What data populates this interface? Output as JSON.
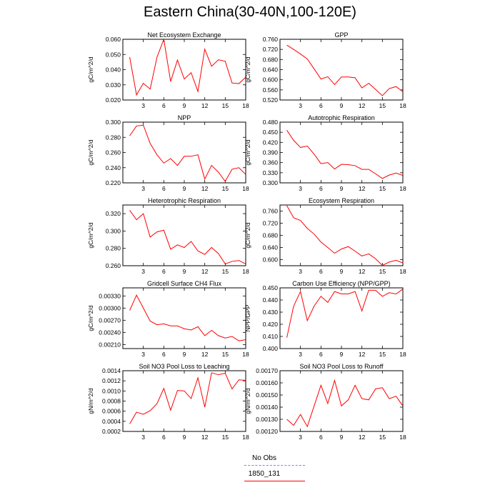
{
  "title": "Eastern China(30-40N,100-120E)",
  "legend": {
    "items": [
      {
        "label": "No Obs",
        "color": "#8080ff",
        "dashed": true
      },
      {
        "label": "1850_131",
        "color": "#ff0000",
        "dashed": false
      }
    ]
  },
  "chart_data": [
    {
      "type": "line",
      "title": "Net Ecosystem Exchange",
      "ylabel": "gC/m^2/d",
      "xlim": [
        0,
        18
      ],
      "xticks": [
        3,
        6,
        9,
        12,
        15,
        18
      ],
      "ylim": [
        0.02,
        0.06
      ],
      "yticks": [
        "0.020",
        "0.030",
        "0.040",
        "0.050",
        "0.060"
      ],
      "series": [
        {
          "color": "#ff0000",
          "x": [
            1,
            2,
            3,
            4,
            5,
            6,
            7,
            8,
            9,
            10,
            11,
            12,
            13,
            14,
            15,
            16,
            17,
            18
          ],
          "values": [
            0.0483,
            0.0234,
            0.031,
            0.0272,
            0.0482,
            0.06,
            0.0322,
            0.0463,
            0.0338,
            0.038,
            0.0256,
            0.0535,
            0.0422,
            0.0465,
            0.0455,
            0.0312,
            0.0308,
            0.035
          ]
        }
      ]
    },
    {
      "type": "line",
      "title": "GPP",
      "ylabel": "gC/m^2/d",
      "xlim": [
        0,
        18
      ],
      "xticks": [
        3,
        6,
        9,
        12,
        15,
        18
      ],
      "ylim": [
        0.52,
        0.76
      ],
      "yticks": [
        "0.520",
        "0.560",
        "0.600",
        "0.640",
        "0.680",
        "0.720",
        "0.760"
      ],
      "series": [
        {
          "color": "#ff0000",
          "x": [
            1,
            2,
            3,
            4,
            5,
            6,
            7,
            8,
            9,
            10,
            11,
            12,
            13,
            14,
            15,
            16,
            17,
            18
          ],
          "values": [
            0.737,
            0.72,
            0.702,
            0.682,
            0.643,
            0.603,
            0.612,
            0.581,
            0.611,
            0.611,
            0.608,
            0.568,
            0.586,
            0.562,
            0.537,
            0.565,
            0.573,
            0.553
          ]
        }
      ]
    },
    {
      "type": "line",
      "title": "NPP",
      "ylabel": "gC/m^2/d",
      "xlim": [
        0,
        18
      ],
      "xticks": [
        3,
        6,
        9,
        12,
        15,
        18
      ],
      "ylim": [
        0.22,
        0.3
      ],
      "yticks": [
        "0.220",
        "0.240",
        "0.260",
        "0.280",
        "0.300"
      ],
      "series": [
        {
          "color": "#ff0000",
          "x": [
            1,
            2,
            3,
            4,
            5,
            6,
            7,
            8,
            9,
            10,
            11,
            12,
            13,
            14,
            15,
            16,
            17,
            18
          ],
          "values": [
            0.282,
            0.295,
            0.296,
            0.272,
            0.257,
            0.246,
            0.252,
            0.243,
            0.255,
            0.255,
            0.257,
            0.225,
            0.243,
            0.234,
            0.222,
            0.238,
            0.24,
            0.231
          ]
        }
      ]
    },
    {
      "type": "line",
      "title": "Autotrophic Respiration",
      "ylabel": "gC/m^2/d",
      "xlim": [
        0,
        18
      ],
      "xticks": [
        3,
        6,
        9,
        12,
        15,
        18
      ],
      "ylim": [
        0.3,
        0.48
      ],
      "yticks": [
        "0.300",
        "0.330",
        "0.360",
        "0.390",
        "0.420",
        "0.450",
        "0.480"
      ],
      "series": [
        {
          "color": "#ff0000",
          "x": [
            1,
            2,
            3,
            4,
            5,
            6,
            7,
            8,
            9,
            10,
            11,
            12,
            13,
            14,
            15,
            16,
            17,
            18
          ],
          "values": [
            0.456,
            0.426,
            0.405,
            0.409,
            0.385,
            0.357,
            0.36,
            0.341,
            0.355,
            0.354,
            0.351,
            0.34,
            0.34,
            0.327,
            0.313,
            0.323,
            0.329,
            0.322
          ]
        }
      ]
    },
    {
      "type": "line",
      "title": "Heterotrophic Respiration",
      "ylabel": "gC/m^2/d",
      "xlim": [
        0,
        18
      ],
      "xticks": [
        3,
        6,
        9,
        12,
        15,
        18
      ],
      "ylim": [
        0.26,
        0.33
      ],
      "yticks": [
        "0.260",
        "0.280",
        "0.300",
        "0.320"
      ],
      "series": [
        {
          "color": "#ff0000",
          "x": [
            1,
            2,
            3,
            4,
            5,
            6,
            7,
            8,
            9,
            10,
            11,
            12,
            13,
            14,
            15,
            16,
            17,
            18
          ],
          "values": [
            0.324,
            0.313,
            0.32,
            0.293,
            0.299,
            0.301,
            0.279,
            0.284,
            0.281,
            0.288,
            0.277,
            0.273,
            0.281,
            0.274,
            0.262,
            0.265,
            0.266,
            0.262
          ]
        }
      ]
    },
    {
      "type": "line",
      "title": "Ecosystem Respiration",
      "ylabel": "gC/m^2/d",
      "xlim": [
        0,
        18
      ],
      "xticks": [
        3,
        6,
        9,
        12,
        15,
        18
      ],
      "ylim": [
        0.58,
        0.78
      ],
      "yticks": [
        "0.600",
        "0.640",
        "0.680",
        "0.720",
        "0.760"
      ],
      "series": [
        {
          "color": "#ff0000",
          "x": [
            1,
            2,
            3,
            4,
            5,
            6,
            7,
            8,
            9,
            10,
            11,
            12,
            13,
            14,
            15,
            16,
            17,
            18
          ],
          "values": [
            0.778,
            0.738,
            0.729,
            0.703,
            0.684,
            0.658,
            0.64,
            0.621,
            0.635,
            0.643,
            0.628,
            0.612,
            0.619,
            0.603,
            0.581,
            0.592,
            0.598,
            0.589
          ]
        }
      ]
    },
    {
      "type": "line",
      "title": "Gridcell Surface CH4 Flux",
      "ylabel": "gC/m^2/d",
      "xlim": [
        0,
        18
      ],
      "xticks": [
        3,
        6,
        9,
        12,
        15,
        18
      ],
      "ylim": [
        0.002,
        0.0035
      ],
      "yticks": [
        "0.00210",
        "0.00240",
        "0.00270",
        "0.00300",
        "0.00330"
      ],
      "series": [
        {
          "color": "#ff0000",
          "x": [
            1,
            2,
            3,
            4,
            5,
            6,
            7,
            8,
            9,
            10,
            11,
            12,
            13,
            14,
            15,
            16,
            17,
            18
          ],
          "values": [
            0.00294,
            0.00332,
            0.003,
            0.00268,
            0.00259,
            0.00261,
            0.00256,
            0.00256,
            0.00249,
            0.00246,
            0.00254,
            0.00232,
            0.00245,
            0.00232,
            0.00226,
            0.0023,
            0.00219,
            0.00222
          ]
        }
      ]
    },
    {
      "type": "line",
      "title": "Carbon Use Efficiency (NPP/GPP)",
      "ylabel": "NPP/GPP",
      "xlim": [
        0,
        18
      ],
      "xticks": [
        3,
        6,
        9,
        12,
        15,
        18
      ],
      "ylim": [
        0.4,
        0.45
      ],
      "yticks": [
        "0.400",
        "0.410",
        "0.420",
        "0.430",
        "0.440",
        "0.450"
      ],
      "series": [
        {
          "color": "#ff0000",
          "x": [
            1,
            2,
            3,
            4,
            5,
            6,
            7,
            8,
            9,
            10,
            11,
            12,
            13,
            14,
            15,
            16,
            17,
            18
          ],
          "values": [
            0.409,
            0.435,
            0.447,
            0.423,
            0.435,
            0.443,
            0.438,
            0.447,
            0.445,
            0.445,
            0.447,
            0.431,
            0.448,
            0.448,
            0.443,
            0.446,
            0.445,
            0.449
          ]
        }
      ]
    },
    {
      "type": "line",
      "title": "Soil NO3 Pool Loss to Leaching",
      "ylabel": "gN/m^2/d",
      "xlim": [
        0,
        18
      ],
      "xticks": [
        3,
        6,
        9,
        12,
        15,
        18
      ],
      "ylim": [
        0.0002,
        0.0014
      ],
      "yticks": [
        "0.0002",
        "0.0004",
        "0.0006",
        "0.0008",
        "0.0010",
        "0.0012",
        "0.0014"
      ],
      "series": [
        {
          "color": "#ff0000",
          "x": [
            1,
            2,
            3,
            4,
            5,
            6,
            7,
            8,
            9,
            10,
            11,
            12,
            13,
            14,
            15,
            16,
            17,
            18
          ],
          "values": [
            0.00035,
            0.00058,
            0.00054,
            0.00061,
            0.00075,
            0.00105,
            0.00062,
            0.00101,
            0.001,
            0.00085,
            0.00126,
            0.00068,
            0.00136,
            0.00132,
            0.00135,
            0.00104,
            0.00122,
            0.00121
          ]
        }
      ]
    },
    {
      "type": "line",
      "title": "Soil NO3 Pool Loss to Runoff",
      "ylabel": "gN/m^2/d",
      "xlim": [
        0,
        18
      ],
      "xticks": [
        3,
        6,
        9,
        12,
        15,
        18
      ],
      "ylim": [
        0.0012,
        0.0017
      ],
      "yticks": [
        "0.00120",
        "0.00130",
        "0.00140",
        "0.00150",
        "0.00160",
        "0.00170"
      ],
      "series": [
        {
          "color": "#ff0000",
          "x": [
            1,
            2,
            3,
            4,
            5,
            6,
            7,
            8,
            9,
            10,
            11,
            12,
            13,
            14,
            15,
            16,
            17,
            18
          ],
          "values": [
            0.0013,
            0.00125,
            0.00134,
            0.00124,
            0.00141,
            0.00158,
            0.00143,
            0.00162,
            0.00141,
            0.00146,
            0.00158,
            0.00147,
            0.00146,
            0.00155,
            0.00156,
            0.00147,
            0.00149,
            0.00141
          ]
        }
      ]
    }
  ]
}
